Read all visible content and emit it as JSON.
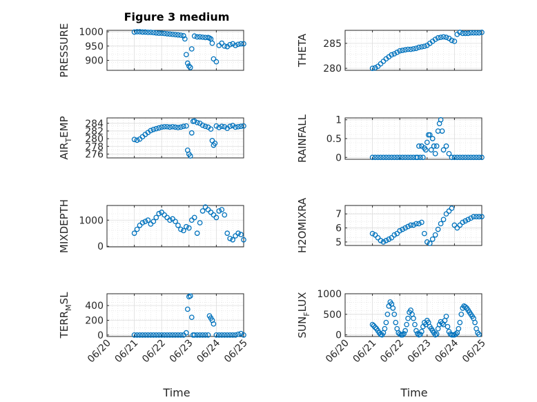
{
  "figure": {
    "title": "Figure 3 medium",
    "xlabel": "Time"
  },
  "style": {
    "marker_color": "#0072BD",
    "axis_color": "#262626",
    "grid_color": "#dcdcdc"
  },
  "x_ticks": [
    "06/20",
    "06/21",
    "06/22",
    "06/23",
    "06/24",
    "06/25"
  ],
  "chart_data": [
    {
      "type": "scatter",
      "ylabel": "PRESSURE",
      "ylabel_sub": "",
      "ylim": [
        865,
        1005
      ],
      "yticks": [
        900,
        950,
        1000
      ],
      "xlim": [
        20.8,
        25
      ],
      "x": [
        21.0,
        21.1,
        21.2,
        21.3,
        21.4,
        21.5,
        21.6,
        21.7,
        21.8,
        21.9,
        22.0,
        22.1,
        22.2,
        22.3,
        22.4,
        22.5,
        22.6,
        22.7,
        22.8,
        22.85,
        22.9,
        22.95,
        23.0,
        23.05,
        23.1,
        23.2,
        23.3,
        23.4,
        23.5,
        23.6,
        23.7,
        23.75,
        23.8,
        23.85,
        23.9,
        24.0,
        24.1,
        24.2,
        24.3,
        24.4,
        24.5,
        24.6,
        24.7,
        24.8,
        24.9,
        25.0
      ],
      "y": [
        999,
        1000,
        1000,
        999,
        999,
        998,
        998,
        997,
        996,
        995,
        995,
        994,
        993,
        992,
        991,
        990,
        989,
        988,
        986,
        975,
        920,
        890,
        880,
        875,
        940,
        985,
        982,
        982,
        981,
        980,
        980,
        978,
        975,
        960,
        905,
        895,
        952,
        960,
        950,
        948,
        955,
        958,
        952,
        956,
        958,
        958
      ]
    },
    {
      "type": "scatter",
      "ylabel": "THETA",
      "ylabel_sub": "",
      "ylim": [
        279.6,
        287.6
      ],
      "yticks": [
        280,
        285
      ],
      "xlim": [
        20.8,
        25
      ],
      "x": [
        21.0,
        21.1,
        21.2,
        21.3,
        21.4,
        21.5,
        21.6,
        21.7,
        21.8,
        21.9,
        22.0,
        22.1,
        22.2,
        22.3,
        22.4,
        22.5,
        22.6,
        22.7,
        22.8,
        22.9,
        23.0,
        23.1,
        23.2,
        23.3,
        23.4,
        23.5,
        23.6,
        23.7,
        23.8,
        23.9,
        24.0,
        24.1,
        24.2,
        24.3,
        24.4,
        24.5,
        24.6,
        24.7,
        24.8,
        24.9,
        25.0
      ],
      "y": [
        280.0,
        280.1,
        280.4,
        280.9,
        281.4,
        281.9,
        282.3,
        282.7,
        282.9,
        283.2,
        283.5,
        283.6,
        283.7,
        283.8,
        283.8,
        283.9,
        284.0,
        284.2,
        284.3,
        284.4,
        284.6,
        285.0,
        285.4,
        285.8,
        286.1,
        286.2,
        286.3,
        286.2,
        286.0,
        285.6,
        285.4,
        286.8,
        287.2,
        287.0,
        287.0,
        287.0,
        287.1,
        287.1,
        287.1,
        287.1,
        287.2
      ]
    },
    {
      "type": "scatter",
      "ylabel": "AIR",
      "ylabel_sub": "T",
      "ylabel_after": "EMP",
      "ylim": [
        275,
        285.4
      ],
      "yticks": [
        276,
        278,
        280,
        282,
        284
      ],
      "xlim": [
        20.8,
        25
      ],
      "x": [
        21.0,
        21.1,
        21.2,
        21.3,
        21.4,
        21.5,
        21.6,
        21.7,
        21.8,
        21.9,
        22.0,
        22.1,
        22.2,
        22.3,
        22.4,
        22.5,
        22.6,
        22.7,
        22.8,
        22.9,
        22.95,
        23.0,
        23.05,
        23.1,
        23.15,
        23.2,
        23.3,
        23.4,
        23.5,
        23.6,
        23.7,
        23.8,
        23.85,
        23.9,
        23.95,
        24.0,
        24.1,
        24.2,
        24.3,
        24.4,
        24.5,
        24.6,
        24.7,
        24.8,
        24.9,
        25.0
      ],
      "y": [
        279.8,
        279.6,
        279.9,
        280.5,
        281.1,
        281.6,
        282.1,
        282.4,
        282.6,
        282.8,
        283.0,
        283.1,
        283.1,
        283.0,
        283.1,
        283.0,
        282.9,
        283.0,
        283.2,
        283.3,
        277.0,
        276.0,
        275.5,
        281.5,
        284.5,
        284.6,
        284.2,
        284.0,
        283.5,
        283.2,
        283.0,
        282.5,
        279.5,
        278.3,
        278.8,
        283.3,
        282.9,
        283.2,
        283.1,
        282.7,
        283.2,
        283.4,
        283.0,
        283.1,
        283.2,
        283.3
      ]
    },
    {
      "type": "scatter",
      "ylabel": "RAINFALL",
      "ylabel_sub": "",
      "ylim": [
        -0.05,
        1.05
      ],
      "yticks": [
        0,
        0.5,
        1
      ],
      "xlim": [
        20.8,
        25
      ],
      "x": [
        21.0,
        21.1,
        21.2,
        21.3,
        21.4,
        21.5,
        21.6,
        21.7,
        21.8,
        21.9,
        22.0,
        22.1,
        22.2,
        22.3,
        22.4,
        22.5,
        22.6,
        22.65,
        22.7,
        22.75,
        22.8,
        22.85,
        22.9,
        22.95,
        23.0,
        23.05,
        23.1,
        23.15,
        23.2,
        23.25,
        23.3,
        23.35,
        23.4,
        23.45,
        23.5,
        23.55,
        23.6,
        23.7,
        23.8,
        23.9,
        24.0,
        24.1,
        24.2,
        24.3,
        24.4,
        24.5,
        24.6,
        24.7,
        24.8,
        24.9,
        25.0
      ],
      "y": [
        0,
        0,
        0,
        0,
        0,
        0,
        0,
        0,
        0,
        0,
        0,
        0,
        0,
        0,
        0,
        0,
        0,
        0,
        0.3,
        0,
        0.3,
        0,
        0.25,
        0.2,
        0.4,
        0.6,
        0.6,
        0.2,
        0.5,
        0.3,
        0.1,
        0.3,
        0.7,
        0.9,
        1.0,
        0.7,
        0.2,
        0.3,
        0.1,
        0,
        0,
        0,
        0,
        0,
        0,
        0,
        0,
        0,
        0,
        0,
        0
      ]
    },
    {
      "type": "scatter",
      "ylabel": "MIXDEPTH",
      "ylabel_sub": "",
      "ylim": [
        -20,
        1560
      ],
      "yticks": [
        0,
        1000
      ],
      "xlim": [
        20.8,
        25
      ],
      "x": [
        21.0,
        21.1,
        21.2,
        21.3,
        21.4,
        21.5,
        21.6,
        21.7,
        21.8,
        21.9,
        22.0,
        22.1,
        22.2,
        22.3,
        22.4,
        22.5,
        22.6,
        22.7,
        22.8,
        22.9,
        23.0,
        23.1,
        23.2,
        23.3,
        23.4,
        23.5,
        23.6,
        23.7,
        23.8,
        23.9,
        24.0,
        24.1,
        24.2,
        24.3,
        24.4,
        24.5,
        24.6,
        24.7,
        24.8,
        24.9,
        25.0
      ],
      "y": [
        500,
        650,
        800,
        900,
        950,
        1000,
        850,
        950,
        1100,
        1250,
        1300,
        1200,
        1100,
        1000,
        1050,
        950,
        800,
        650,
        600,
        750,
        700,
        1000,
        1100,
        500,
        900,
        1350,
        1500,
        1400,
        1300,
        1200,
        1100,
        1350,
        1400,
        1200,
        500,
        300,
        250,
        400,
        500,
        450,
        250
      ]
    },
    {
      "type": "scatter",
      "ylabel": "H2OMIXRA",
      "ylabel_sub": "",
      "ylim": [
        4.75,
        7.6
      ],
      "yticks": [
        5,
        6,
        7
      ],
      "xlim": [
        20.8,
        25
      ],
      "x": [
        21.0,
        21.1,
        21.2,
        21.3,
        21.4,
        21.5,
        21.6,
        21.7,
        21.8,
        21.9,
        22.0,
        22.1,
        22.2,
        22.3,
        22.4,
        22.5,
        22.6,
        22.7,
        22.8,
        22.9,
        23.0,
        23.1,
        23.2,
        23.3,
        23.4,
        23.5,
        23.6,
        23.7,
        23.8,
        23.9,
        24.0,
        24.1,
        24.2,
        24.3,
        24.4,
        24.5,
        24.6,
        24.7,
        24.8,
        24.9,
        25.0
      ],
      "y": [
        5.6,
        5.5,
        5.3,
        5.1,
        5.0,
        5.1,
        5.2,
        5.3,
        5.5,
        5.6,
        5.8,
        5.9,
        6.0,
        6.1,
        6.2,
        6.2,
        6.3,
        6.3,
        6.4,
        5.6,
        5.0,
        4.9,
        5.2,
        5.5,
        5.9,
        6.3,
        6.6,
        7.0,
        7.2,
        7.4,
        6.2,
        6.0,
        6.2,
        6.4,
        6.5,
        6.6,
        6.7,
        6.8,
        6.8,
        6.8,
        6.8
      ]
    },
    {
      "type": "scatter",
      "ylabel": "TERR",
      "ylabel_sub": "M",
      "ylabel_after": "SL",
      "ylim": [
        -20,
        560
      ],
      "yticks": [
        0,
        200,
        400
      ],
      "xlim": [
        20.8,
        25
      ],
      "x": [
        21.0,
        21.1,
        21.2,
        21.3,
        21.4,
        21.5,
        21.6,
        21.7,
        21.8,
        21.9,
        22.0,
        22.1,
        22.2,
        22.3,
        22.4,
        22.5,
        22.6,
        22.7,
        22.8,
        22.9,
        22.95,
        23.0,
        23.05,
        23.1,
        23.15,
        23.2,
        23.3,
        23.4,
        23.5,
        23.6,
        23.7,
        23.75,
        23.8,
        23.85,
        23.9,
        24.0,
        24.1,
        24.2,
        24.3,
        24.4,
        24.5,
        24.6,
        24.7,
        24.8,
        24.9,
        25.0
      ],
      "y": [
        0,
        0,
        0,
        0,
        0,
        0,
        0,
        0,
        0,
        0,
        0,
        0,
        0,
        0,
        0,
        0,
        0,
        0,
        0,
        30,
        350,
        520,
        530,
        240,
        0,
        0,
        0,
        0,
        0,
        0,
        0,
        260,
        230,
        200,
        150,
        0,
        0,
        0,
        0,
        0,
        0,
        0,
        0,
        10,
        20,
        0
      ]
    },
    {
      "type": "scatter",
      "ylabel": "SUN",
      "ylabel_sub": "F",
      "ylabel_after": "LUX",
      "ylim": [
        -40,
        1000
      ],
      "yticks": [
        0,
        500,
        1000
      ],
      "xlim": [
        20.8,
        25
      ],
      "x": [
        21.0,
        21.05,
        21.1,
        21.15,
        21.2,
        21.25,
        21.3,
        21.35,
        21.4,
        21.45,
        21.5,
        21.55,
        21.6,
        21.65,
        21.7,
        21.75,
        21.8,
        21.85,
        21.9,
        21.95,
        22.0,
        22.05,
        22.1,
        22.15,
        22.2,
        22.25,
        22.3,
        22.35,
        22.4,
        22.45,
        22.5,
        22.55,
        22.6,
        22.65,
        22.7,
        22.75,
        22.8,
        22.85,
        22.9,
        22.95,
        23.0,
        23.05,
        23.1,
        23.15,
        23.2,
        23.25,
        23.3,
        23.35,
        23.4,
        23.45,
        23.5,
        23.55,
        23.6,
        23.65,
        23.7,
        23.75,
        23.8,
        23.85,
        23.9,
        23.95,
        24.0,
        24.05,
        24.1,
        24.15,
        24.2,
        24.25,
        24.3,
        24.35,
        24.4,
        24.45,
        24.5,
        24.55,
        24.6,
        24.65,
        24.7,
        24.75,
        24.8,
        24.85,
        24.9
      ],
      "y": [
        250,
        220,
        180,
        150,
        100,
        50,
        10,
        0,
        50,
        150,
        300,
        500,
        700,
        800,
        750,
        650,
        500,
        300,
        150,
        50,
        20,
        0,
        0,
        30,
        100,
        250,
        400,
        550,
        600,
        500,
        400,
        250,
        100,
        30,
        0,
        10,
        80,
        200,
        300,
        250,
        350,
        300,
        200,
        150,
        100,
        50,
        0,
        20,
        150,
        250,
        320,
        280,
        250,
        350,
        450,
        200,
        80,
        20,
        0,
        0,
        0,
        20,
        50,
        150,
        300,
        500,
        650,
        700,
        680,
        650,
        600,
        550,
        500,
        450,
        400,
        300,
        150,
        50,
        10
      ]
    }
  ]
}
